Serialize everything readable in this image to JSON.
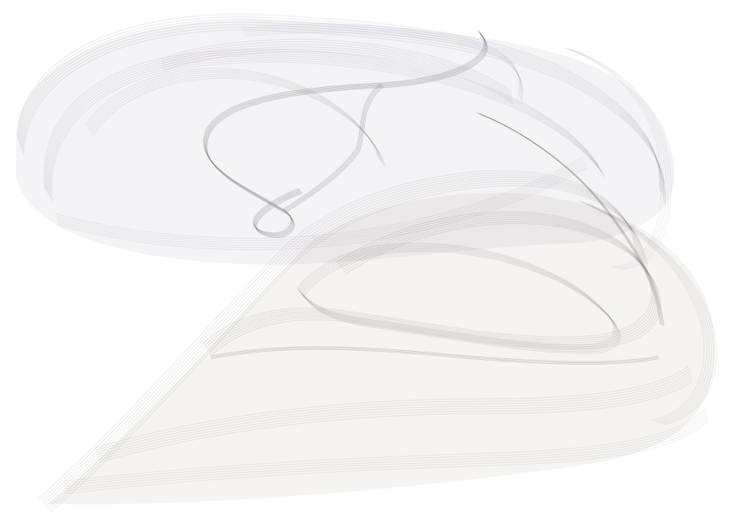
{
  "colors": {
    "background": "#ffffff",
    "upper_tint": "#5f5a72",
    "lower_tint": "#6b6259",
    "core_ink": "#3a3836"
  }
}
